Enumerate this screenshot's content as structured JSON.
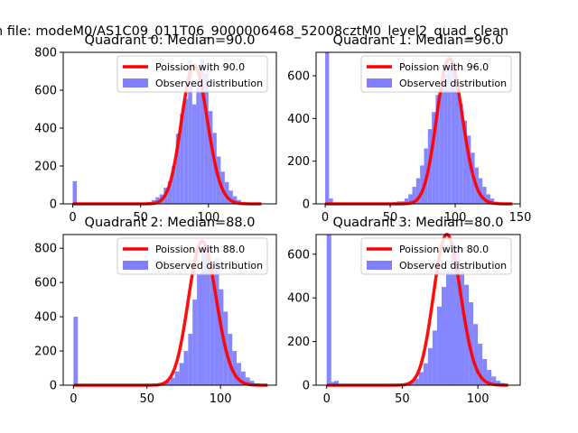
{
  "suptitle": "n file: modeM0/AS1C09_011T06_9000006468_52008cztM0_level2_quad_clean",
  "colors": {
    "hist": "#8080ff",
    "poisson": "#ff0000"
  },
  "chart_data": [
    {
      "type": "bar",
      "title": "Quadrant 0: Median=90.0",
      "legend": [
        "Poission with 90.0",
        "Observed distribution"
      ],
      "legend_position": "top-right",
      "xlim": [
        -7,
        150
      ],
      "ylim": [
        0,
        800
      ],
      "xticks": [
        0,
        50,
        100
      ],
      "yticks": [
        0,
        200,
        400,
        600,
        800
      ],
      "hist_x": [
        0,
        55,
        58,
        61,
        64,
        67,
        70,
        73,
        76,
        79,
        82,
        85,
        88,
        91,
        94,
        97,
        100,
        103,
        106,
        109,
        112,
        115,
        118,
        121,
        124,
        127
      ],
      "hist_y": [
        120,
        10,
        20,
        35,
        50,
        85,
        120,
        200,
        370,
        475,
        555,
        760,
        525,
        645,
        765,
        690,
        490,
        375,
        250,
        170,
        115,
        70,
        40,
        20,
        10,
        5
      ],
      "bin_width": 3,
      "poisson_mean": 90,
      "poisson_peak": 730,
      "poisson_range": [
        0,
        139
      ]
    },
    {
      "type": "bar",
      "title": "Quadrant 1: Median=96.0",
      "legend": [
        "Poission with 96.0",
        "Observed distribution"
      ],
      "legend_position": "top-right",
      "xlim": [
        -7,
        150
      ],
      "ylim": [
        0,
        710
      ],
      "xticks": [
        0,
        50,
        100,
        150
      ],
      "yticks": [
        0,
        200,
        400,
        600
      ],
      "hist_x": [
        0,
        3,
        52,
        55,
        58,
        61,
        64,
        67,
        70,
        73,
        76,
        79,
        82,
        85,
        88,
        91,
        94,
        97,
        100,
        103,
        106,
        109,
        112,
        115,
        118,
        121,
        124,
        127,
        130
      ],
      "hist_y": [
        710,
        25,
        8,
        12,
        12,
        25,
        45,
        80,
        120,
        180,
        260,
        350,
        430,
        510,
        560,
        610,
        650,
        640,
        560,
        470,
        390,
        320,
        240,
        170,
        120,
        80,
        45,
        25,
        10
      ],
      "bin_width": 3,
      "poisson_mean": 96,
      "poisson_peak": 680,
      "poisson_range": [
        0,
        144
      ]
    },
    {
      "type": "bar",
      "title": "Quadrant 2: Median=88.0",
      "legend": [
        "Poission with 88.0",
        "Observed distribution"
      ],
      "legend_position": "top-right",
      "xlim": [
        -7,
        138
      ],
      "ylim": [
        0,
        880
      ],
      "xticks": [
        0,
        50,
        100
      ],
      "yticks": [
        0,
        200,
        400,
        600,
        800
      ],
      "hist_x": [
        0,
        60,
        63,
        66,
        69,
        72,
        75,
        78,
        81,
        84,
        87,
        90,
        93,
        96,
        99,
        102,
        105,
        108,
        111,
        114,
        117,
        120,
        123
      ],
      "hist_y": [
        400,
        10,
        25,
        45,
        80,
        130,
        200,
        300,
        500,
        650,
        800,
        820,
        700,
        740,
        560,
        430,
        300,
        200,
        130,
        80,
        45,
        25,
        10
      ],
      "bin_width": 3,
      "poisson_mean": 88,
      "poisson_peak": 840,
      "poisson_range": [
        0,
        132
      ]
    },
    {
      "type": "bar",
      "title": "Quadrant 3: Median=80.0",
      "legend": [
        "Poission with 80.0",
        "Observed distribution"
      ],
      "legend_position": "top-right",
      "xlim": [
        -7,
        128
      ],
      "ylim": [
        0,
        690
      ],
      "xticks": [
        0,
        50,
        100
      ],
      "yticks": [
        0,
        200,
        400,
        600
      ],
      "hist_x": [
        0,
        3,
        5,
        52,
        55,
        58,
        61,
        64,
        67,
        70,
        73,
        76,
        79,
        82,
        85,
        88,
        91,
        94,
        97,
        100,
        103,
        106,
        109,
        112,
        115
      ],
      "hist_y": [
        690,
        15,
        20,
        10,
        20,
        30,
        60,
        100,
        170,
        250,
        360,
        450,
        520,
        600,
        640,
        520,
        460,
        380,
        280,
        190,
        120,
        70,
        40,
        20,
        10
      ],
      "bin_width": 3,
      "poisson_mean": 80,
      "poisson_peak": 690,
      "poisson_range": [
        0,
        120
      ]
    }
  ]
}
